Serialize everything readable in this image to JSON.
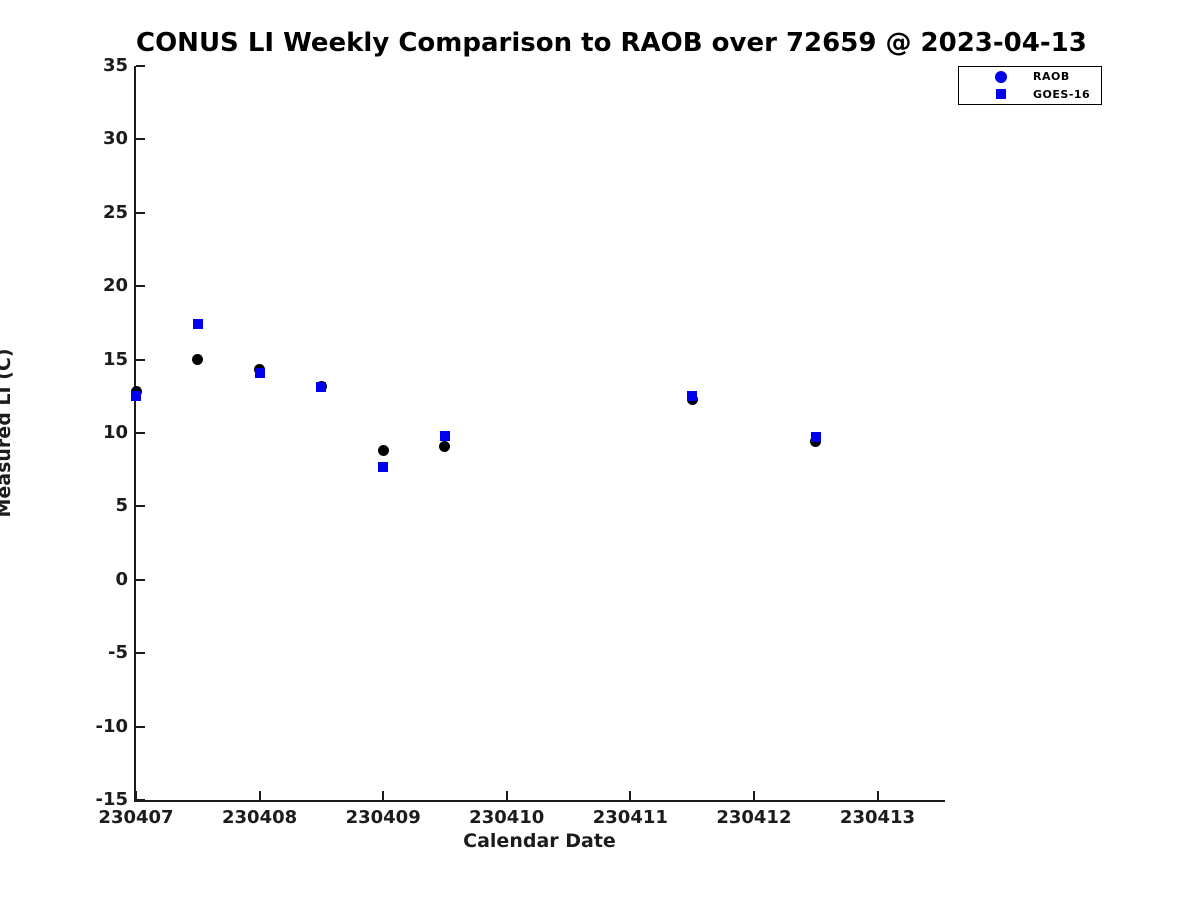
{
  "title": "CONUS LI Weekly Comparison to RAOB over 72659 @ 2023-04-13",
  "chart_data": {
    "type": "scatter",
    "x": [
      230407,
      230407.5,
      230408,
      230408.5,
      230409,
      230409.5,
      230411.5,
      230412.5
    ],
    "series": [
      {
        "name": "RAOB",
        "marker": "circle",
        "plot_color": "#000000",
        "legend_color": "#0000ee",
        "values": [
          12.8,
          15.0,
          14.3,
          13.2,
          8.8,
          9.1,
          12.3,
          9.4
        ]
      },
      {
        "name": "GOES-16",
        "marker": "square",
        "plot_color": "#0000ee",
        "legend_color": "#0000ee",
        "values": [
          12.5,
          17.4,
          14.1,
          13.1,
          7.7,
          9.8,
          12.5,
          9.7
        ]
      }
    ],
    "title": "CONUS LI Weekly Comparison to RAOB over 72659 @ 2023-04-13",
    "xlabel": "Calendar Date",
    "ylabel": "Measured LI (C)",
    "xlim": [
      230407,
      230413.53
    ],
    "ylim": [
      -15,
      35
    ],
    "xticks": [
      230407,
      230408,
      230409,
      230410,
      230411,
      230412,
      230413
    ],
    "xtick_labels": [
      "230407",
      "230408",
      "230409",
      "230410",
      "230411",
      "230412",
      "230413"
    ],
    "yticks": [
      -15,
      -10,
      -5,
      0,
      5,
      10,
      15,
      20,
      25,
      30,
      35
    ],
    "ytick_labels": [
      "-15",
      "-10",
      "-5",
      "0",
      "5",
      "10",
      "15",
      "20",
      "25",
      "30",
      "35"
    ],
    "grid": false,
    "legend_position": "top-right-outside",
    "axis_color": "#1c1c1c",
    "background": "#ffffff"
  }
}
